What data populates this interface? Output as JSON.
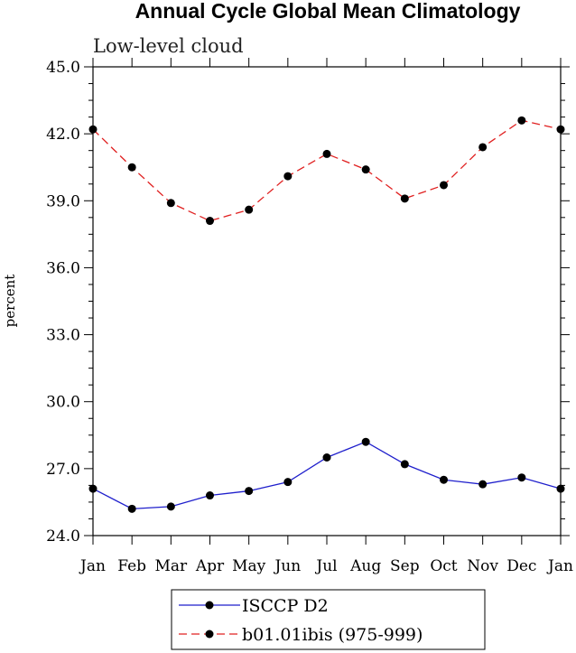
{
  "chart_data": {
    "type": "line",
    "title": "Annual Cycle Global Mean Climatology",
    "subtitle": "Low-level cloud",
    "xlabel": "",
    "ylabel": "percent",
    "categories": [
      "Jan",
      "Feb",
      "Mar",
      "Apr",
      "May",
      "Jun",
      "Jul",
      "Aug",
      "Sep",
      "Oct",
      "Nov",
      "Dec",
      "Jan"
    ],
    "ylim": [
      24.0,
      45.0
    ],
    "yticks": [
      "24.0",
      "27.0",
      "30.0",
      "33.0",
      "36.0",
      "39.0",
      "42.0",
      "45.0"
    ],
    "legend_position": "bottom",
    "series": [
      {
        "name": "ISCCP D2",
        "color": "#1f1fcc",
        "dash": "solid",
        "marker": "circle",
        "values": [
          26.1,
          25.2,
          25.3,
          25.8,
          26.0,
          26.4,
          27.5,
          28.2,
          27.2,
          26.5,
          26.3,
          26.6,
          26.1
        ]
      },
      {
        "name": "b01.01ibis (975-999)",
        "color": "#e02020",
        "dash": "dashed",
        "marker": "circle",
        "values": [
          42.2,
          40.5,
          38.9,
          38.1,
          38.6,
          40.1,
          41.1,
          40.4,
          39.1,
          39.7,
          41.4,
          42.6,
          42.2
        ]
      }
    ]
  }
}
